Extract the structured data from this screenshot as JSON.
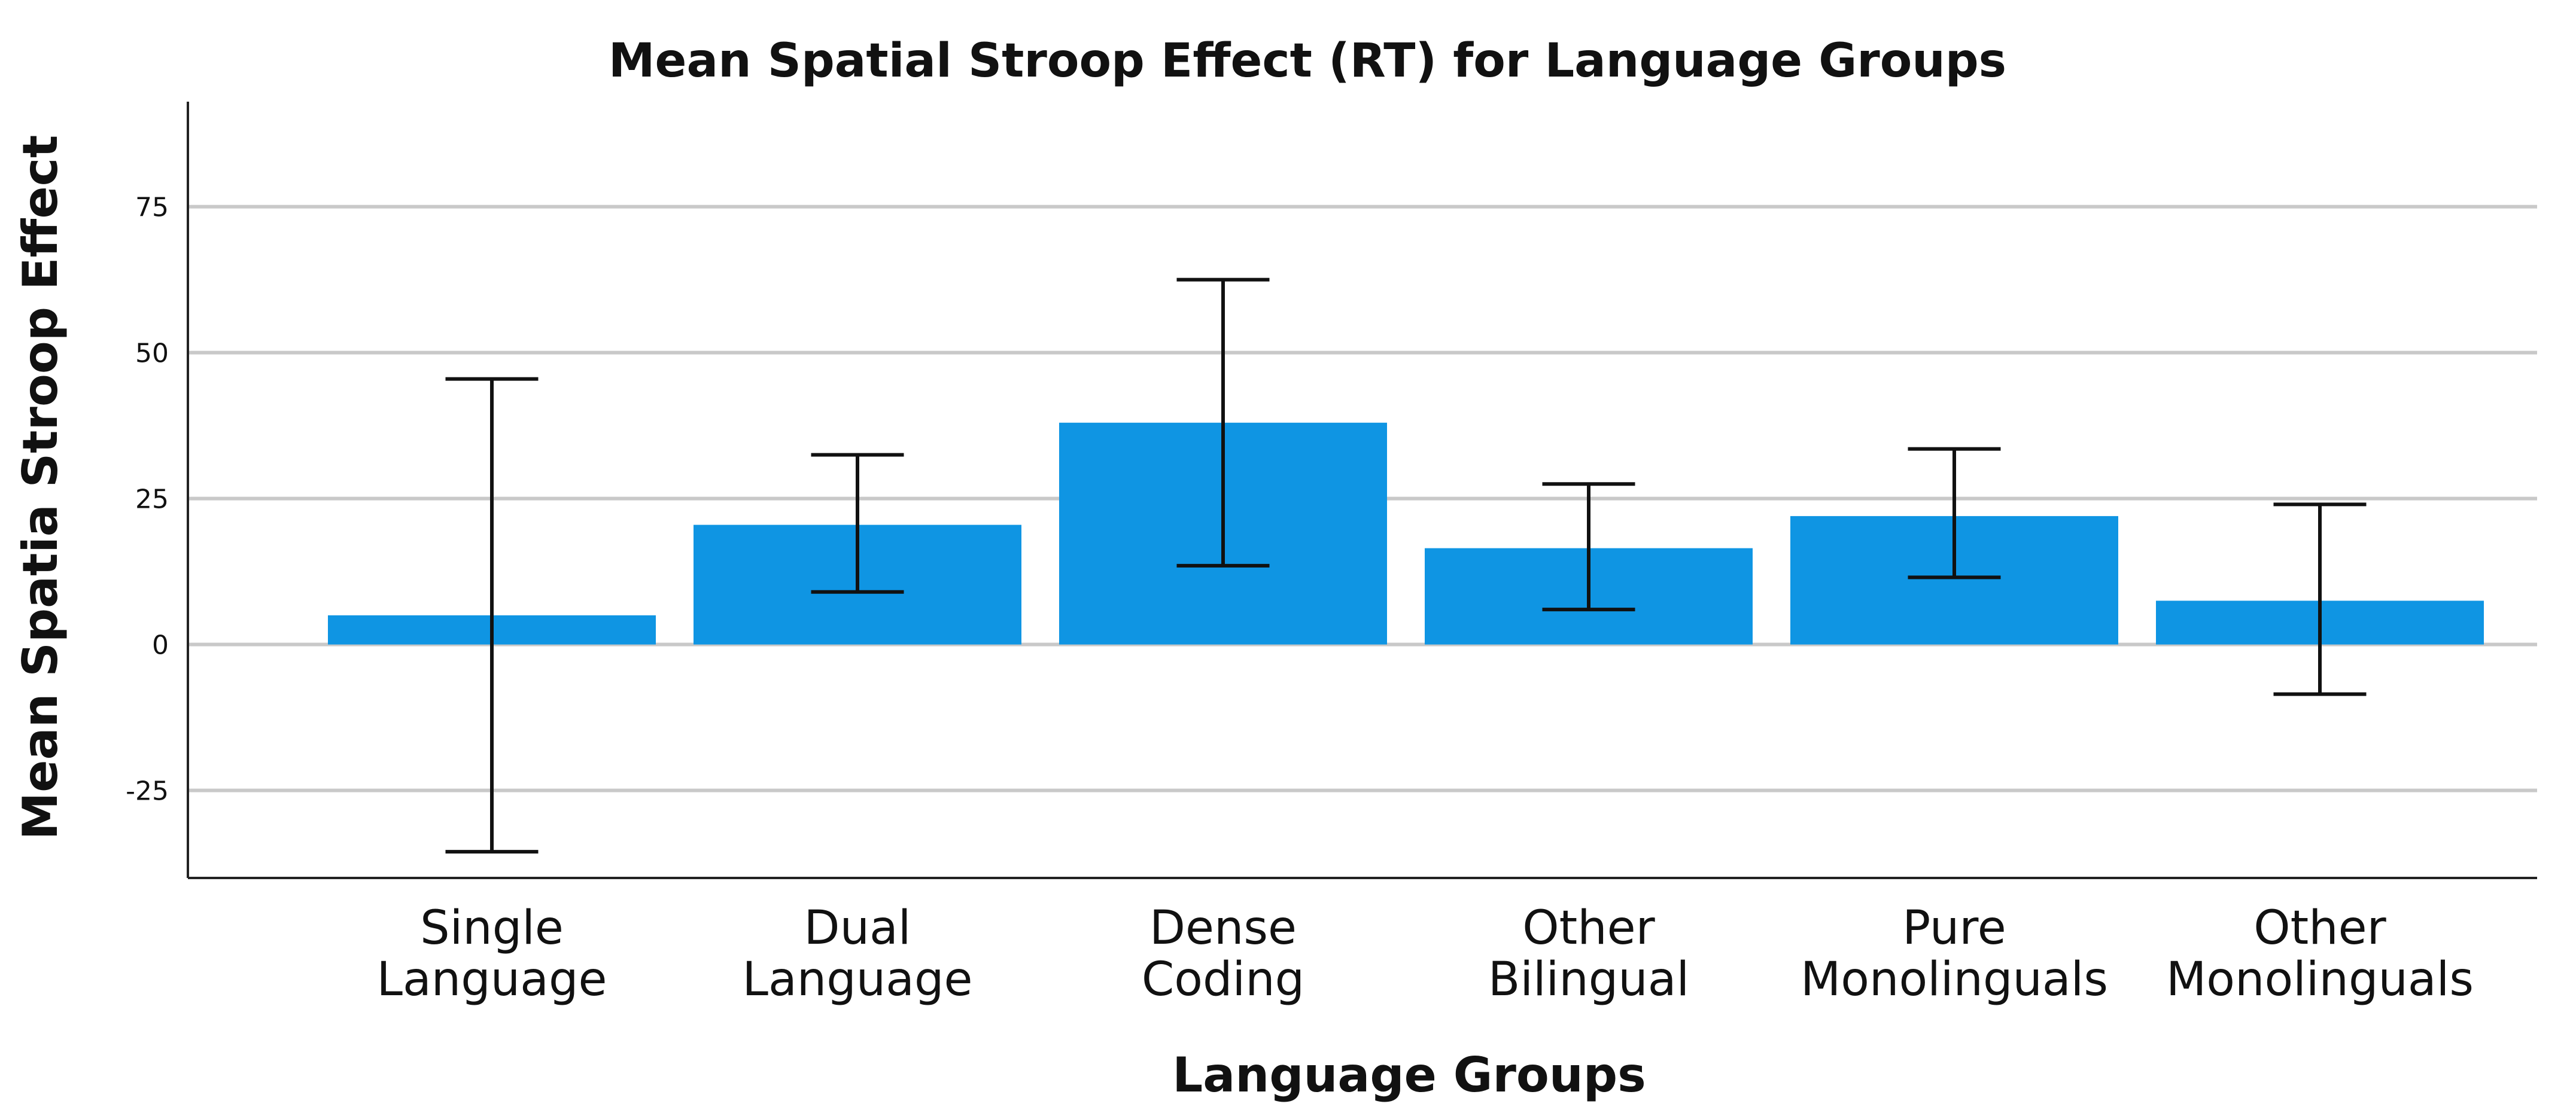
{
  "chart_data": {
    "type": "bar",
    "title": "Mean Spatial Stroop Effect (RT) for Language Groups",
    "xlabel": "Language Groups",
    "ylabel": "Mean Spatia Stroop Effect",
    "ylim": [
      -40,
      93
    ],
    "yticks": [
      -25,
      0,
      25,
      50,
      75
    ],
    "grid": true,
    "bar_color": "#0f95e3",
    "categories": [
      {
        "lines": [
          "Single",
          "Language"
        ]
      },
      {
        "lines": [
          "Dual",
          "Language"
        ]
      },
      {
        "lines": [
          "Dense",
          "Coding"
        ]
      },
      {
        "lines": [
          "Other",
          "Bilingual"
        ]
      },
      {
        "lines": [
          "Pure",
          "Monolinguals"
        ]
      },
      {
        "lines": [
          "Other",
          "Monolinguals"
        ]
      }
    ],
    "values": [
      5,
      20.5,
      38,
      16.5,
      22,
      7.5
    ],
    "error_low": [
      -35.5,
      9,
      13.5,
      6,
      11.5,
      -8.5
    ],
    "error_high": [
      45.5,
      32.5,
      62.5,
      27.5,
      33.5,
      24
    ]
  }
}
